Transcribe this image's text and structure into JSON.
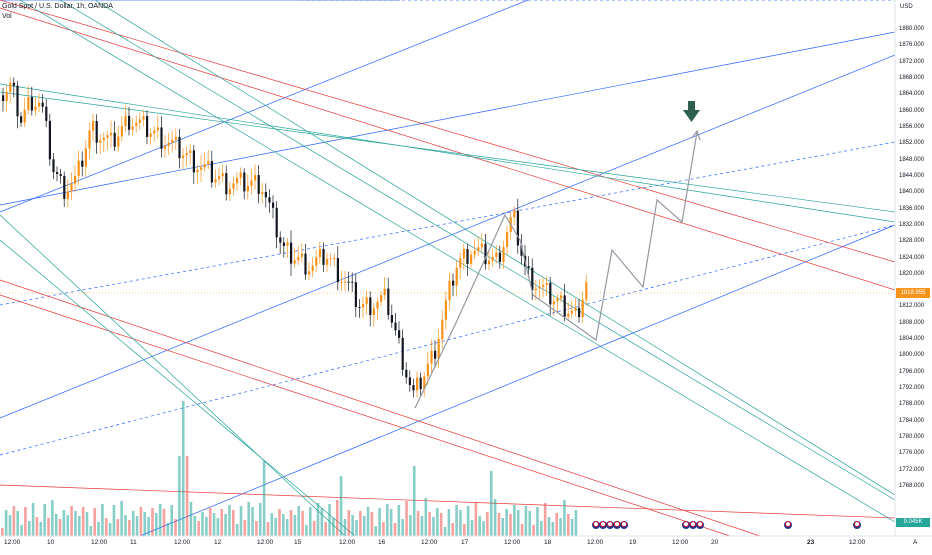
{
  "header": {
    "symbol_line": "Gold Spot / U.S. Dollar, 1h, OANDA",
    "volume_label": "Vol"
  },
  "price_axis": {
    "unit": "USD",
    "ticks": [
      "1880.000",
      "1876.000",
      "1872.000",
      "1868.000",
      "1864.000",
      "1860.000",
      "1856.000",
      "1852.000",
      "1848.000",
      "1844.000",
      "1840.000",
      "1836.000",
      "1832.000",
      "1828.000",
      "1824.000",
      "1820.000",
      "1812.000",
      "1808.000",
      "1804.000",
      "1800.000",
      "1796.000",
      "1792.000",
      "1788.000",
      "1784.000",
      "1780.000",
      "1776.000",
      "1772.000",
      "1768.000"
    ],
    "current_price": "1818.955",
    "volume_value": "9.045K"
  },
  "time_axis": {
    "labels": [
      {
        "text": "12:00",
        "bold": false
      },
      {
        "text": "10",
        "bold": false
      },
      {
        "text": "12:00",
        "bold": false
      },
      {
        "text": "11",
        "bold": false
      },
      {
        "text": "12:00",
        "bold": false
      },
      {
        "text": "12",
        "bold": false
      },
      {
        "text": "12:00",
        "bold": false
      },
      {
        "text": "15",
        "bold": false
      },
      {
        "text": "12:00",
        "bold": false
      },
      {
        "text": "16",
        "bold": false
      },
      {
        "text": "12:00",
        "bold": false
      },
      {
        "text": "17",
        "bold": false
      },
      {
        "text": "12:00",
        "bold": false
      },
      {
        "text": "18",
        "bold": false
      },
      {
        "text": "12:00",
        "bold": false
      },
      {
        "text": "19",
        "bold": false
      },
      {
        "text": "12:00",
        "bold": false
      },
      {
        "text": "20",
        "bold": false
      },
      {
        "text": "23",
        "bold": true
      },
      {
        "text": "12:00",
        "bold": false
      }
    ],
    "corner_label": "A"
  },
  "colors": {
    "bull": "#f7931a",
    "bear": "#131722",
    "vol_up": "#26a69a",
    "vol_down": "#ef5350",
    "blue_line": "#2962ff",
    "red_line": "#e53935",
    "green_line": "#26a69a",
    "projection": "#9598a1",
    "arrow": "#2e5e4e"
  },
  "chart_data": {
    "type": "candlestick",
    "title": "Gold Spot / U.S. Dollar, 1h, OANDA",
    "unit": "USD",
    "ylim": [
      1768,
      1880
    ],
    "current_price": 1818.955,
    "volume_last": "9.045K",
    "notable_prices": {
      "high": 1863.0,
      "swing_high_12": 1859.0,
      "low_15": 1813.0,
      "low_16": 1787.5,
      "high_17": 1837.0,
      "last": 1818.955
    }
  }
}
